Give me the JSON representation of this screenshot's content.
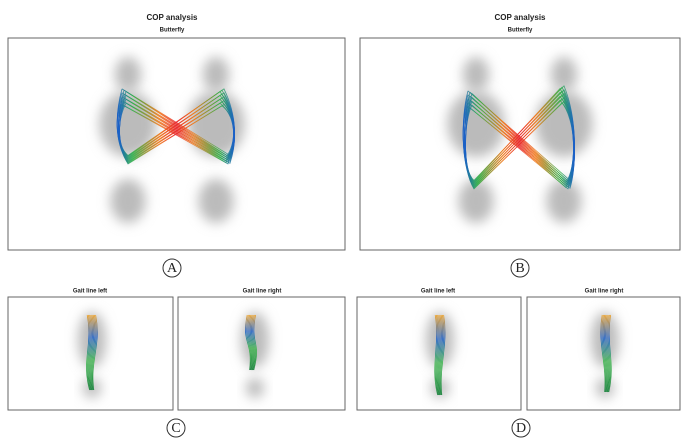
{
  "panels": [
    {
      "title": "COP analysis",
      "subtitle": "Butterfly",
      "label": "A"
    },
    {
      "title": "COP analysis",
      "subtitle": "Butterfly",
      "label": "B"
    },
    {
      "subtitles": [
        "Gait line left",
        "Gait line right"
      ],
      "label": "C"
    },
    {
      "subtitles": [
        "Gait line left",
        "Gait line right"
      ],
      "label": "D"
    }
  ]
}
